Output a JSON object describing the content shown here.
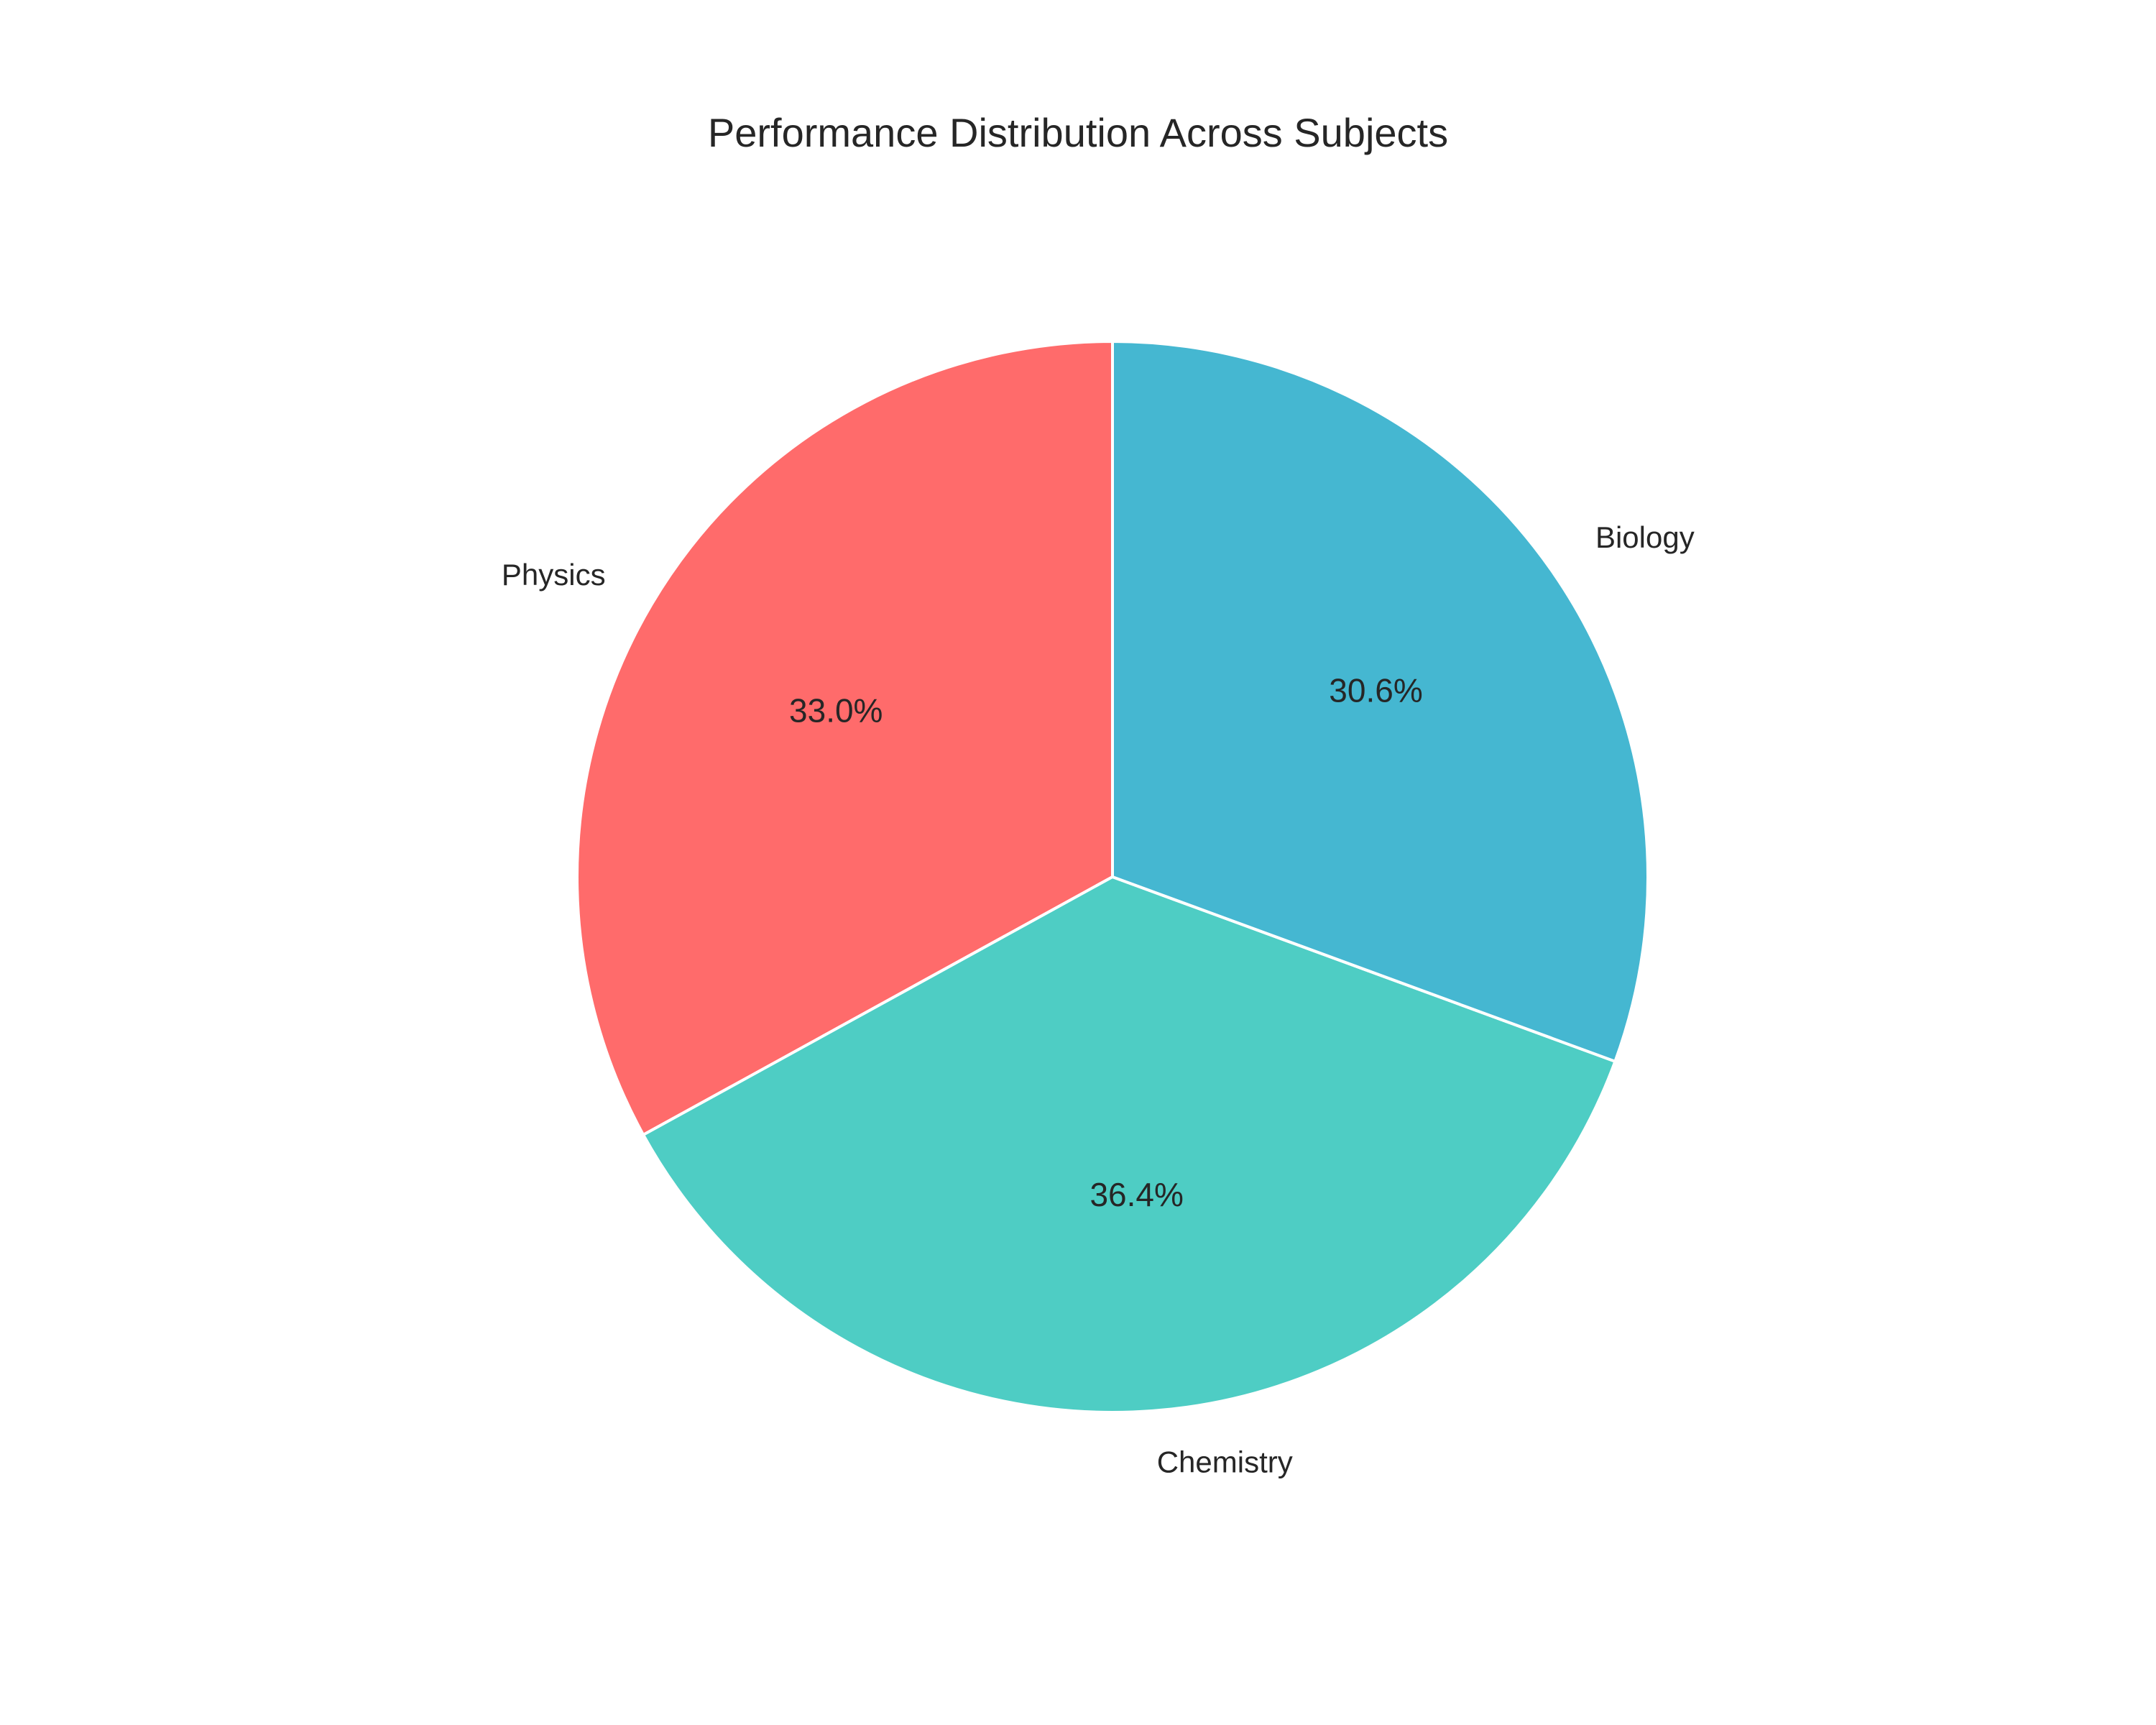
{
  "chart_data": {
    "type": "pie",
    "title": "Performance Distribution Across Subjects",
    "categories": [
      "Physics",
      "Chemistry",
      "Biology"
    ],
    "values": [
      33.0,
      36.4,
      30.6
    ],
    "value_labels": [
      "33.0%",
      "36.4%",
      "30.6%"
    ],
    "colors": [
      "#FF6B6B",
      "#4ECDC4",
      "#45B7D1"
    ],
    "start_angle_deg": 90,
    "direction": "counterclockwise",
    "legend": "none"
  }
}
